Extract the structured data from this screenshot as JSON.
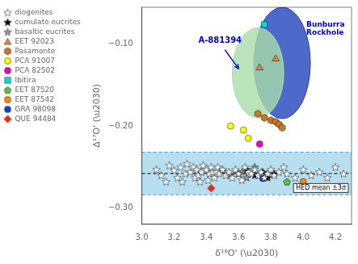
{
  "chart_data": {
    "type": "scatter",
    "xlabel": "δ¹⁸O' (\\u2030)",
    "ylabel": "Δ¹⁷O' (\\u2030)",
    "xlim": [
      3.0,
      4.3
    ],
    "ylim": [
      -0.32,
      -0.055
    ],
    "xticks": [
      {
        "value": 3,
        "label": "3.0"
      },
      3.2,
      3.4,
      3.6,
      3.8,
      {
        "value": 4,
        "label": "4.0"
      },
      4.2
    ],
    "yticks": [
      {
        "value": -0.3,
        "label": "−0.30"
      },
      {
        "value": -0.2,
        "label": "−0.20"
      },
      {
        "value": -0.1,
        "label": "−0.10"
      }
    ],
    "grid": false,
    "legend": "upper left",
    "bands": [
      {
        "label": "HED mean ±3σ",
        "lower": -0.284,
        "upper": -0.232,
        "mean": -0.258,
        "color": "#b8dff0"
      }
    ],
    "regions": [
      {
        "cx": 3.87,
        "cy": -0.123,
        "rx": 0.175,
        "ry": 0.068,
        "color": "#2244bb"
      },
      {
        "cx": 3.72,
        "cy": -0.135,
        "rx": 0.16,
        "ry": 0.055,
        "color": "#aaddaa"
      }
    ],
    "annotations": [
      {
        "text": "A-881394",
        "x": 3.35,
        "y": -0.098,
        "color": "#0000cc"
      },
      {
        "text": "Bunburra\nRockhole",
        "x": 4.02,
        "y": -0.072,
        "color": "#0000cc"
      }
    ],
    "arrows": [
      {
        "from": [
          3.515,
          -0.107
        ],
        "to": [
          3.6,
          -0.13
        ],
        "color": "#0000cc"
      }
    ],
    "series": [
      {
        "name": "diogenites",
        "color": "#ffffff",
        "marker": "star",
        "values": [
          [
            3.09,
            -0.253
          ],
          [
            3.12,
            -0.26
          ],
          [
            3.15,
            -0.268
          ],
          [
            3.17,
            -0.248
          ],
          [
            3.2,
            -0.254
          ],
          [
            3.22,
            -0.263
          ],
          [
            3.24,
            -0.25
          ],
          [
            3.25,
            -0.268
          ],
          [
            3.27,
            -0.258
          ],
          [
            3.28,
            -0.246
          ],
          [
            3.3,
            -0.256
          ],
          [
            3.32,
            -0.25
          ],
          [
            3.33,
            -0.263
          ],
          [
            3.34,
            -0.253
          ],
          [
            3.35,
            -0.26
          ],
          [
            3.36,
            -0.268
          ],
          [
            3.37,
            -0.256
          ],
          [
            3.38,
            -0.248
          ],
          [
            3.4,
            -0.253
          ],
          [
            3.41,
            -0.266
          ],
          [
            3.42,
            -0.258
          ],
          [
            3.43,
            -0.25
          ],
          [
            3.44,
            -0.256
          ],
          [
            3.45,
            -0.263
          ],
          [
            3.46,
            -0.256
          ],
          [
            3.47,
            -0.25
          ],
          [
            3.48,
            -0.258
          ],
          [
            3.5,
            -0.253
          ],
          [
            3.52,
            -0.26
          ],
          [
            3.54,
            -0.256
          ],
          [
            3.56,
            -0.263
          ],
          [
            3.58,
            -0.253
          ],
          [
            3.6,
            -0.258
          ],
          [
            3.62,
            -0.266
          ],
          [
            3.64,
            -0.25
          ],
          [
            3.66,
            -0.256
          ],
          [
            3.68,
            -0.258
          ],
          [
            3.7,
            -0.253
          ],
          [
            3.72,
            -0.26
          ],
          [
            3.74,
            -0.256
          ],
          [
            3.76,
            -0.263
          ],
          [
            3.78,
            -0.258
          ],
          [
            3.8,
            -0.253
          ],
          [
            3.82,
            -0.26
          ],
          [
            3.85,
            -0.256
          ],
          [
            3.88,
            -0.25
          ],
          [
            3.9,
            -0.258
          ],
          [
            3.95,
            -0.263
          ],
          [
            4.0,
            -0.253
          ],
          [
            4.05,
            -0.26
          ],
          [
            4.1,
            -0.256
          ],
          [
            4.15,
            -0.263
          ],
          [
            4.2,
            -0.25
          ],
          [
            4.25,
            -0.258
          ]
        ]
      },
      {
        "name": "cumulate eucrites",
        "color": "#000000",
        "marker": "star",
        "values": [
          [
            3.6,
            -0.258
          ],
          [
            3.65,
            -0.253
          ],
          [
            3.7,
            -0.26
          ],
          [
            3.75,
            -0.256
          ],
          [
            3.78,
            -0.263
          ],
          [
            3.82,
            -0.258
          ]
        ]
      },
      {
        "name": "basaltic eucrites",
        "color": "#999999",
        "marker": "star",
        "values": [
          [
            3.5,
            -0.254
          ],
          [
            3.55,
            -0.26
          ],
          [
            3.62,
            -0.256
          ],
          [
            3.65,
            -0.263
          ],
          [
            3.7,
            -0.25
          ],
          [
            3.75,
            -0.258
          ]
        ]
      },
      {
        "name": "EET 92023",
        "color": "#dd8833",
        "marker": "triangle",
        "values": [
          [
            3.73,
            -0.128
          ],
          [
            3.83,
            -0.117
          ]
        ]
      },
      {
        "name": "Pasamonte",
        "color": "#cc7722",
        "marker": "hexagon",
        "values": [
          [
            3.72,
            -0.185
          ],
          [
            3.76,
            -0.19
          ],
          [
            3.8,
            -0.193
          ],
          [
            3.83,
            -0.195
          ],
          [
            3.85,
            -0.198
          ],
          [
            3.87,
            -0.202
          ]
        ]
      },
      {
        "name": "PCA 91007",
        "color": "#ffff00",
        "marker": "circle",
        "values": [
          [
            3.55,
            -0.2
          ],
          [
            3.63,
            -0.205
          ],
          [
            3.66,
            -0.215
          ]
        ]
      },
      {
        "name": "PCA 82502",
        "color": "#ee00cc",
        "marker": "circle",
        "values": [
          [
            3.73,
            -0.222
          ]
        ]
      },
      {
        "name": "Ibitira",
        "color": "#00dddd",
        "marker": "square",
        "values": [
          [
            3.76,
            -0.076
          ]
        ]
      },
      {
        "name": "EET 87520",
        "color": "#66bb44",
        "marker": "pentagon",
        "values": [
          [
            3.9,
            -0.268
          ]
        ]
      },
      {
        "name": "EET 87542",
        "color": "#ff8800",
        "marker": "circle",
        "values": [
          [
            4.0,
            -0.268
          ]
        ]
      },
      {
        "name": "GRA 98098",
        "color": "#1144cc",
        "marker": "circle",
        "values": [
          [
            3.75,
            -0.264
          ]
        ]
      },
      {
        "name": "QUE 94484",
        "color": "#ff2200",
        "marker": "diamond",
        "values": [
          [
            3.43,
            -0.276
          ]
        ]
      }
    ]
  }
}
